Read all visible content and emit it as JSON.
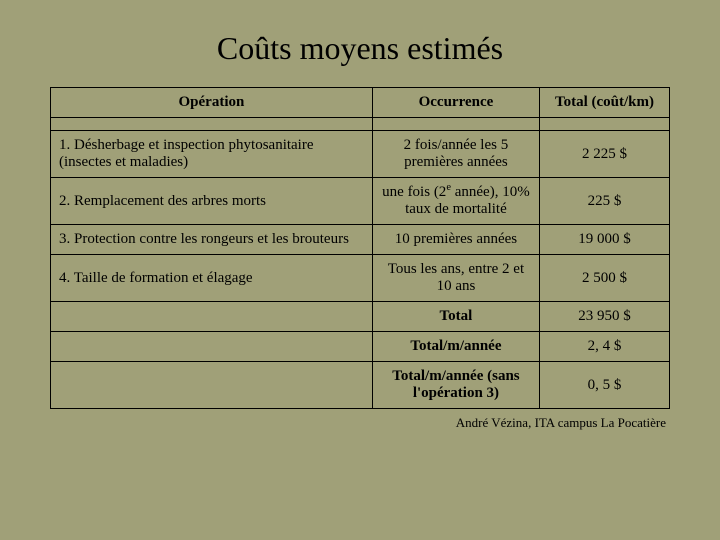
{
  "title": "Coûts moyens estimés",
  "columns": {
    "c1": "Opération",
    "c2": "Occurrence",
    "c3": "Total (coût/km)"
  },
  "rows": [
    {
      "op": "1. Désherbage et inspection phytosanitaire (insectes et maladies)",
      "occ": "2 fois/année les 5 premières années",
      "tot": "2 225 $"
    },
    {
      "op": "2. Remplacement des arbres morts",
      "occ_html": "une fois (2<span class=\"sup\">e</span> année), 10% taux de mortalité",
      "tot": "225 $"
    },
    {
      "op": "3. Protection contre les rongeurs et les brouteurs",
      "occ": "10 premières années",
      "tot": "19 000 $"
    },
    {
      "op": "4. Taille de formation et élagage",
      "occ": "Tous les ans, entre 2 et 10 ans",
      "tot": "2 500 $"
    }
  ],
  "totals": [
    {
      "label": "Total",
      "value": "23 950 $"
    },
    {
      "label": "Total/m/année",
      "value": "2, 4 $"
    },
    {
      "label": "Total/m/année (sans l'opération 3)",
      "value": "0, 5 $"
    }
  ],
  "credit": "André Vézina, ITA campus La Pocatière",
  "colors": {
    "background": "#a0a078",
    "border": "#000000",
    "text": "#000000"
  }
}
